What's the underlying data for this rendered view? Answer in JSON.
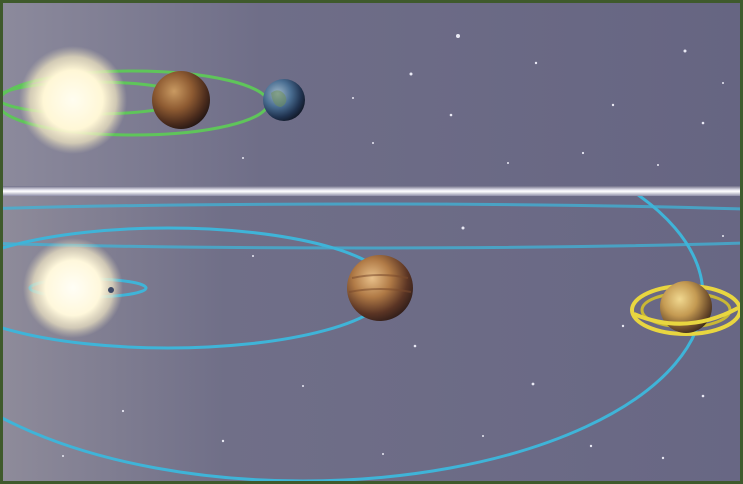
{
  "scene": {
    "panels": [
      {
        "name": "inner-solar-system",
        "bodies": [
          "sun-icon",
          "venus-icon",
          "earth-icon"
        ],
        "orbit_color": "#5fc55a"
      },
      {
        "name": "outer-solar-system",
        "bodies": [
          "sun-icon",
          "jupiter-icon",
          "saturn-icon"
        ],
        "orbit_color": "#3fb4d8"
      }
    ],
    "colors": {
      "space": "#6c6b86",
      "space_edge": "#8a8aa0",
      "sun": "#fffbe2",
      "divider": "#f2f1f8",
      "frame": "#3f5a2c",
      "saturn_ring": "#e8d640"
    }
  }
}
